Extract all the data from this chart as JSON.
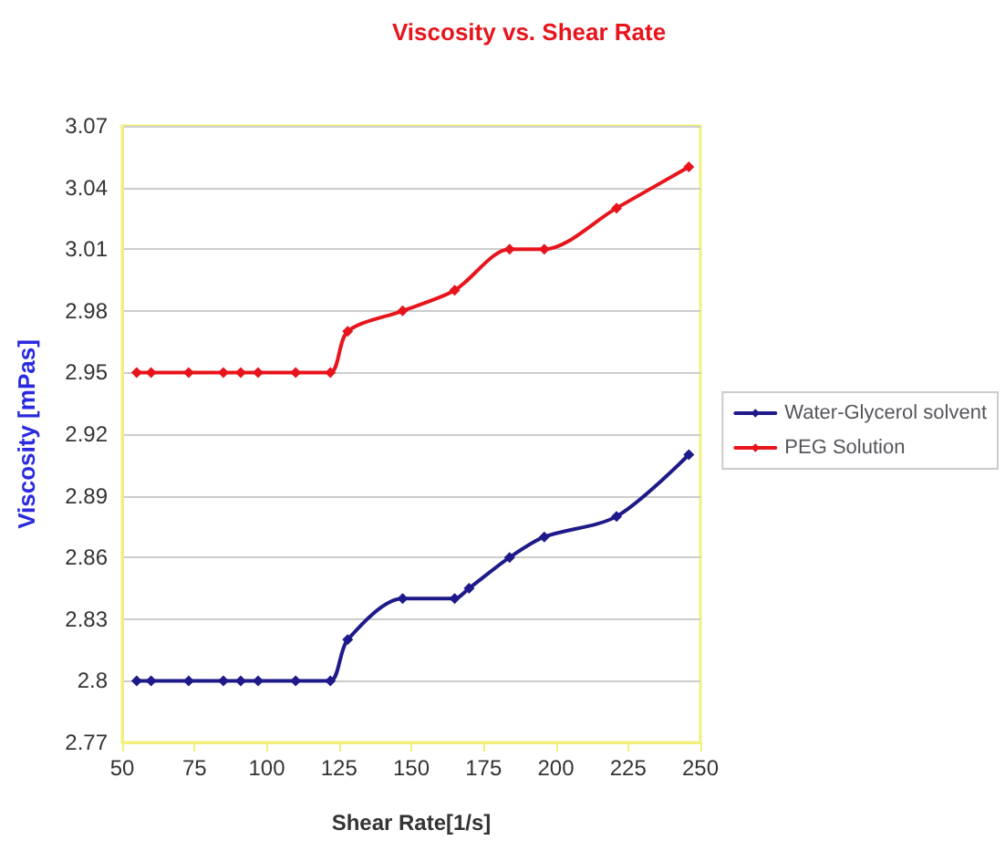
{
  "chart_data": {
    "type": "line",
    "title": "Viscosity vs. Shear Rate",
    "xlabel": "Shear Rate[1/s]",
    "ylabel": "Viscosity [mPas]",
    "xlim": [
      50,
      250
    ],
    "xticks": [
      50,
      75,
      100,
      125,
      150,
      175,
      200,
      225,
      250
    ],
    "ylim": [
      2.77,
      3.07
    ],
    "yticks": [
      2.77,
      2.8,
      2.83,
      2.86,
      2.89,
      2.92,
      2.95,
      2.98,
      3.01,
      3.04,
      3.07
    ],
    "grid": "y",
    "legend": "right",
    "marker": "diamond",
    "line_style": "solid",
    "series": [
      {
        "name": "Water-Glycerol solvent",
        "color": "#1f1a8a",
        "x": [
          55,
          60,
          73,
          85,
          91,
          97,
          110,
          122,
          128,
          147,
          165,
          170,
          184,
          196,
          221,
          246
        ],
        "values": [
          2.8,
          2.8,
          2.8,
          2.8,
          2.8,
          2.8,
          2.8,
          2.8,
          2.82,
          2.84,
          2.84,
          2.845,
          2.86,
          2.87,
          2.88,
          2.91
        ]
      },
      {
        "name": "PEG Solution",
        "color": "#e8141c",
        "x": [
          55,
          60,
          73,
          85,
          91,
          97,
          110,
          122,
          128,
          147,
          165,
          184,
          196,
          221,
          246
        ],
        "values": [
          2.95,
          2.95,
          2.95,
          2.95,
          2.95,
          2.95,
          2.95,
          2.95,
          2.97,
          2.98,
          2.99,
          3.01,
          3.01,
          3.03,
          3.05
        ]
      }
    ]
  }
}
